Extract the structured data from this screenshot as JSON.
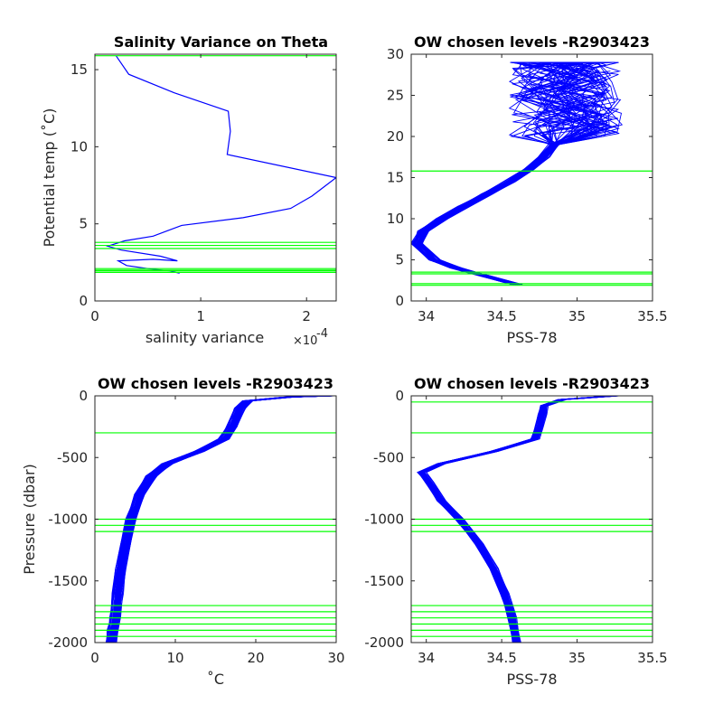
{
  "colors": {
    "profile": "#0000ff",
    "level": "#00ff00",
    "axis": "#262626"
  },
  "chart_data": [
    {
      "id": "p1",
      "type": "line",
      "title": "Salinity Variance on Theta",
      "xlabel": "salinity variance",
      "x_exponent": "×10",
      "x_exponent_power": "-4",
      "ylabel": "Potential temp (˚C)",
      "xlim": [
        0,
        2.28
      ],
      "ylim": [
        0,
        16
      ],
      "xticks": [
        0,
        1,
        2
      ],
      "xtick_labels": [
        "0",
        "1",
        "2"
      ],
      "yticks": [
        0,
        5,
        10,
        15
      ],
      "ytick_labels": [
        "0",
        "5",
        "10",
        "15"
      ],
      "series": [
        {
          "values_x": [
            0.8,
            0.7,
            0.5,
            0.3,
            0.22,
            0.55,
            0.78,
            0.62,
            0.25,
            0.12,
            0.28,
            0.55,
            0.82,
            1.4,
            1.85,
            2.05,
            2.28,
            1.25,
            1.28,
            1.26,
            0.75,
            0.32,
            0.2
          ],
          "values_y": [
            1.8,
            1.95,
            2.1,
            2.3,
            2.6,
            2.7,
            2.6,
            2.9,
            3.3,
            3.55,
            3.9,
            4.2,
            4.9,
            5.4,
            6.0,
            6.8,
            8.0,
            9.5,
            11.0,
            12.3,
            13.5,
            14.7,
            15.9
          ]
        }
      ],
      "levels": [
        15.9,
        3.8,
        3.6,
        3.4,
        2.1,
        2.0,
        1.95,
        1.85
      ]
    },
    {
      "id": "p2",
      "type": "line",
      "title": "OW chosen levels -R2903423",
      "xlabel": "PSS-78",
      "ylabel": "",
      "xlim": [
        33.9,
        35.5
      ],
      "ylim": [
        0,
        30
      ],
      "xticks": [
        34,
        34.5,
        35,
        35.5
      ],
      "xtick_labels": [
        "34",
        "34.5",
        "35",
        "35.5"
      ],
      "yticks": [
        0,
        5,
        10,
        15,
        20,
        25,
        30
      ],
      "ytick_labels": [
        "0",
        "5",
        "10",
        "15",
        "20",
        "25",
        "30"
      ],
      "series": [
        {
          "values_x": [
            34.6,
            34.4,
            34.2,
            34.05,
            33.94,
            33.98,
            34.1,
            34.25,
            34.4,
            34.55,
            34.68,
            34.78,
            34.85
          ],
          "values_y": [
            2.0,
            3.0,
            4.0,
            5.0,
            7.0,
            8.5,
            10.0,
            11.5,
            13.0,
            14.5,
            16.0,
            17.5,
            19.0
          ]
        }
      ],
      "levels": [
        15.8,
        3.5,
        3.3,
        2.1,
        1.9
      ]
    },
    {
      "id": "p3",
      "type": "line",
      "title": "OW chosen levels -R2903423",
      "xlabel": "˚C",
      "ylabel": "Pressure (dbar)",
      "xlim": [
        0,
        30
      ],
      "ylim": [
        -2000,
        0
      ],
      "xticks": [
        0,
        10,
        20,
        30
      ],
      "xtick_labels": [
        "0",
        "10",
        "20",
        "30"
      ],
      "yticks": [
        -2000,
        -1500,
        -1000,
        -500,
        0
      ],
      "ytick_labels": [
        "-2000",
        "-1500",
        "-1000",
        "-500",
        "0"
      ],
      "series": [
        {
          "values_x": [
            29.0,
            24.0,
            19.0,
            18.0,
            17.0,
            16.0,
            13.0,
            9.0,
            7.0,
            5.5,
            4.5,
            3.8,
            3.2,
            2.8,
            2.5,
            2.2,
            2.0
          ],
          "values_y": [
            0,
            -10,
            -40,
            -100,
            -250,
            -350,
            -450,
            -550,
            -650,
            -800,
            -1000,
            -1200,
            -1400,
            -1600,
            -1800,
            -1900,
            -2000
          ]
        }
      ],
      "levels": [
        -300,
        -1000,
        -1050,
        -1100,
        -1700,
        -1750,
        -1800,
        -1850,
        -1900,
        -1950
      ]
    },
    {
      "id": "p4",
      "type": "line",
      "title": "OW chosen levels -R2903423",
      "xlabel": "PSS-78",
      "ylabel": "",
      "xlim": [
        33.9,
        35.5
      ],
      "ylim": [
        -2000,
        0
      ],
      "xticks": [
        34,
        34.5,
        35,
        35.5
      ],
      "xtick_labels": [
        "34",
        "34.5",
        "35",
        "35.5"
      ],
      "yticks": [
        -2000,
        -1500,
        -1000,
        -500,
        0
      ],
      "ytick_labels": [
        "-2000",
        "-1500",
        "-1000",
        "-500",
        "0"
      ],
      "series": [
        {
          "values_x": [
            35.25,
            34.9,
            34.78,
            34.77,
            34.75,
            34.72,
            34.45,
            34.1,
            33.97,
            34.02,
            34.1,
            34.22,
            34.35,
            34.45,
            34.52,
            34.57,
            34.6
          ],
          "values_y": [
            0,
            -30,
            -80,
            -150,
            -250,
            -350,
            -450,
            -550,
            -620,
            -700,
            -850,
            -1000,
            -1200,
            -1400,
            -1600,
            -1800,
            -2000
          ]
        }
      ],
      "levels": [
        -50,
        -300,
        -1000,
        -1050,
        -1100,
        -1700,
        -1750,
        -1800,
        -1850,
        -1900,
        -1950
      ]
    }
  ]
}
